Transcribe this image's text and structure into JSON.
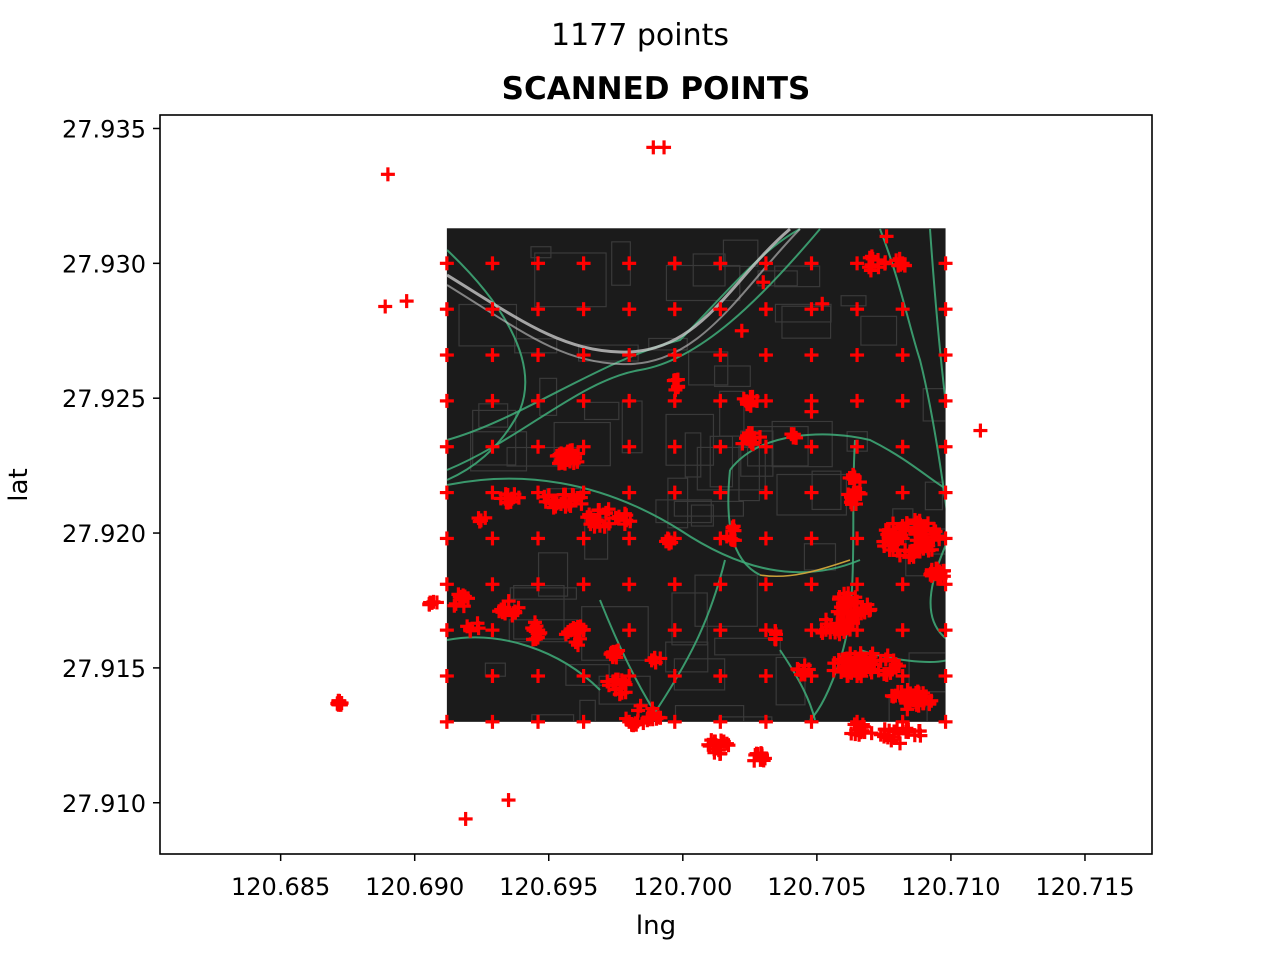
{
  "suptitle": "1177 points",
  "chart_data": {
    "type": "scatter",
    "title": "SCANNED POINTS",
    "xlabel": "lng",
    "ylabel": "lat",
    "xlim": [
      120.6805,
      120.7175
    ],
    "ylim": [
      27.9081,
      27.9355
    ],
    "xticks": [
      120.685,
      120.69,
      120.695,
      120.7,
      120.705,
      120.71,
      120.715
    ],
    "xtick_labels": [
      "120.685",
      "120.690",
      "120.695",
      "120.700",
      "120.705",
      "120.710",
      "120.715"
    ],
    "yticks": [
      27.91,
      27.915,
      27.92,
      27.925,
      27.93,
      27.935
    ],
    "ytick_labels": [
      "27.910",
      "27.915",
      "27.920",
      "27.925",
      "27.930",
      "27.935"
    ],
    "grid": false,
    "marker": "+",
    "marker_color": "#ff0000",
    "background_map": {
      "style": "dark",
      "extent_lng": [
        120.6912,
        120.7098
      ],
      "extent_lat": [
        27.913,
        27.9313
      ],
      "base_color": "#1b1b1b",
      "road_color": "#3fae7a",
      "highway_color": "#c8c8c8",
      "minor_road_color": "#3a3a3a"
    },
    "grid_points": {
      "lng": [
        120.6912,
        120.6929,
        120.6946,
        120.6963,
        120.698,
        120.6997,
        120.7014,
        120.7031,
        120.7048,
        120.7065,
        120.7082,
        120.7098
      ],
      "lat": [
        27.913,
        27.9147,
        27.9164,
        27.9181,
        27.9198,
        27.9215,
        27.9232,
        27.9249,
        27.9266,
        27.9283,
        27.93
      ]
    },
    "clusters": [
      {
        "lng": 120.6957,
        "lat": 27.9228,
        "n": 30,
        "spread_lng": 0.0005,
        "spread_lat": 0.0003
      },
      {
        "lng": 120.6955,
        "lat": 27.9212,
        "n": 25,
        "spread_lng": 0.0008,
        "spread_lat": 0.0003
      },
      {
        "lng": 120.6972,
        "lat": 27.9205,
        "n": 28,
        "spread_lng": 0.0009,
        "spread_lat": 0.0004
      },
      {
        "lng": 120.6935,
        "lat": 27.9213,
        "n": 10,
        "spread_lng": 0.0004,
        "spread_lat": 0.0002
      },
      {
        "lng": 120.6925,
        "lat": 27.9205,
        "n": 4,
        "spread_lng": 0.0002,
        "spread_lat": 0.0002
      },
      {
        "lng": 120.7025,
        "lat": 27.9249,
        "n": 12,
        "spread_lng": 0.0003,
        "spread_lat": 0.0002
      },
      {
        "lng": 120.7025,
        "lat": 27.9235,
        "n": 12,
        "spread_lng": 0.0004,
        "spread_lat": 0.0003
      },
      {
        "lng": 120.7041,
        "lat": 27.9236,
        "n": 4,
        "spread_lng": 0.0002,
        "spread_lat": 0.0001
      },
      {
        "lng": 120.7064,
        "lat": 27.9216,
        "n": 22,
        "spread_lng": 0.00025,
        "spread_lat": 0.0007
      },
      {
        "lng": 120.7085,
        "lat": 27.9198,
        "n": 70,
        "spread_lng": 0.0011,
        "spread_lat": 0.0007
      },
      {
        "lng": 120.7095,
        "lat": 27.9185,
        "n": 20,
        "spread_lng": 0.0003,
        "spread_lat": 0.0002
      },
      {
        "lng": 120.7063,
        "lat": 27.9172,
        "n": 45,
        "spread_lng": 0.0007,
        "spread_lat": 0.0006
      },
      {
        "lng": 120.7055,
        "lat": 27.9165,
        "n": 20,
        "spread_lng": 0.0008,
        "spread_lat": 0.0003
      },
      {
        "lng": 120.7068,
        "lat": 27.9151,
        "n": 55,
        "spread_lng": 0.0013,
        "spread_lat": 0.0005
      },
      {
        "lng": 120.7085,
        "lat": 27.9138,
        "n": 35,
        "spread_lng": 0.0008,
        "spread_lat": 0.0004
      },
      {
        "lng": 120.708,
        "lat": 27.9125,
        "n": 20,
        "spread_lng": 0.001,
        "spread_lat": 0.0003
      },
      {
        "lng": 120.7065,
        "lat": 27.9127,
        "n": 12,
        "spread_lng": 0.0003,
        "spread_lat": 0.0003
      },
      {
        "lng": 120.7013,
        "lat": 27.9121,
        "n": 18,
        "spread_lng": 0.0006,
        "spread_lat": 0.0003
      },
      {
        "lng": 120.7028,
        "lat": 27.9117,
        "n": 12,
        "spread_lng": 0.0003,
        "spread_lat": 0.0002
      },
      {
        "lng": 120.6985,
        "lat": 27.9132,
        "n": 22,
        "spread_lng": 0.0007,
        "spread_lat": 0.0004
      },
      {
        "lng": 120.6975,
        "lat": 27.9143,
        "n": 15,
        "spread_lng": 0.0005,
        "spread_lat": 0.0003
      },
      {
        "lng": 120.6975,
        "lat": 27.9155,
        "n": 12,
        "spread_lng": 0.0002,
        "spread_lat": 0.0002
      },
      {
        "lng": 120.696,
        "lat": 27.9162,
        "n": 15,
        "spread_lng": 0.0004,
        "spread_lat": 0.0004
      },
      {
        "lng": 120.6945,
        "lat": 27.9163,
        "n": 12,
        "spread_lng": 0.0003,
        "spread_lat": 0.0004
      },
      {
        "lng": 120.6935,
        "lat": 27.9172,
        "n": 12,
        "spread_lng": 0.0004,
        "spread_lat": 0.0003
      },
      {
        "lng": 120.6917,
        "lat": 27.9175,
        "n": 10,
        "spread_lng": 0.0003,
        "spread_lat": 0.0003
      },
      {
        "lng": 120.6907,
        "lat": 27.9174,
        "n": 6,
        "spread_lng": 0.0002,
        "spread_lat": 0.0001
      },
      {
        "lng": 120.6872,
        "lat": 27.9137,
        "n": 15,
        "spread_lng": 0.0001,
        "spread_lat": 0.0001
      },
      {
        "lng": 120.699,
        "lat": 27.9153,
        "n": 5,
        "spread_lng": 0.0002,
        "spread_lat": 0.0001
      },
      {
        "lng": 120.6922,
        "lat": 27.9165,
        "n": 5,
        "spread_lng": 0.0003,
        "spread_lat": 0.0002
      },
      {
        "lng": 120.7045,
        "lat": 27.915,
        "n": 8,
        "spread_lng": 0.0003,
        "spread_lat": 0.0003
      },
      {
        "lng": 120.7035,
        "lat": 27.9162,
        "n": 6,
        "spread_lng": 0.0002,
        "spread_lat": 0.0002
      },
      {
        "lng": 120.7018,
        "lat": 27.92,
        "n": 8,
        "spread_lng": 0.0002,
        "spread_lat": 0.0004
      },
      {
        "lng": 120.6995,
        "lat": 27.9197,
        "n": 5,
        "spread_lng": 0.0002,
        "spread_lat": 0.0002
      },
      {
        "lng": 120.6998,
        "lat": 27.9255,
        "n": 6,
        "spread_lng": 0.0003,
        "spread_lat": 0.0002
      },
      {
        "lng": 120.7072,
        "lat": 27.93,
        "n": 10,
        "spread_lng": 0.0004,
        "spread_lat": 0.0003
      },
      {
        "lng": 120.7082,
        "lat": 27.9301,
        "n": 6,
        "spread_lng": 0.0003,
        "spread_lat": 0.0003
      }
    ],
    "outliers": [
      {
        "lng": 120.689,
        "lat": 27.9333
      },
      {
        "lng": 120.6989,
        "lat": 27.9343
      },
      {
        "lng": 120.6993,
        "lat": 27.9343
      },
      {
        "lng": 120.6889,
        "lat": 27.9284
      },
      {
        "lng": 120.6897,
        "lat": 27.9286
      },
      {
        "lng": 120.7111,
        "lat": 27.9238
      },
      {
        "lng": 120.6935,
        "lat": 27.9101
      },
      {
        "lng": 120.6919,
        "lat": 27.9094
      },
      {
        "lng": 120.7048,
        "lat": 27.9245
      },
      {
        "lng": 120.7052,
        "lat": 27.9285
      },
      {
        "lng": 120.703,
        "lat": 27.9293
      },
      {
        "lng": 120.7022,
        "lat": 27.9275
      },
      {
        "lng": 120.7076,
        "lat": 27.931
      }
    ]
  }
}
